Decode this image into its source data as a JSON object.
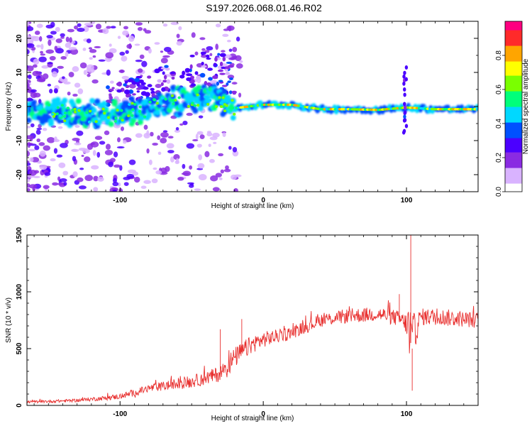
{
  "title": "S197.2026.068.01.46.R02",
  "chart_data": [
    {
      "type": "heatmap",
      "title": "S197.2026.068.01.46.R02",
      "xlabel": "Height of straight line (km)",
      "ylabel": "Frequency (Hz)",
      "xlim": [
        -165,
        150
      ],
      "ylim": [
        -25,
        25
      ],
      "xticks": [
        -100,
        0,
        100
      ],
      "xtick_labels": [
        "-100",
        "0",
        "100"
      ],
      "yticks": [
        -20,
        -10,
        0,
        10,
        20
      ],
      "ytick_labels": [
        "-20",
        "-10",
        "0",
        "10",
        "20"
      ],
      "ridge": {
        "x": [
          -165,
          -140,
          -120,
          -100,
          -80,
          -60,
          -40,
          -30,
          -20,
          0,
          20,
          40,
          60,
          80,
          100,
          120,
          150
        ],
        "frequency": [
          -1.5,
          -2,
          -2.5,
          -2,
          -0.5,
          1.5,
          3,
          2,
          -0.5,
          0.5,
          0.5,
          -0.8,
          -0.8,
          -1,
          -0.3,
          -0.8,
          -0.8
        ]
      },
      "colorbar": {
        "label": "Normalized spectral amplitude",
        "range": [
          0,
          1
        ],
        "ticks": [
          0.0,
          0.2,
          0.4,
          0.6,
          0.8
        ],
        "tick_labels": [
          "0.0",
          "0.2",
          "0.4",
          "0.6",
          "0.8"
        ],
        "colors": [
          "#ffffff",
          "#d9b3ff",
          "#8a2be2",
          "#4b00ff",
          "#0050ff",
          "#00d8ff",
          "#00ff7a",
          "#7aff00",
          "#ffff00",
          "#ffa500",
          "#ff2a2a",
          "#ff0080"
        ]
      }
    },
    {
      "type": "line",
      "xlabel": "Height of straight line (km)",
      "ylabel": "SNR (10 * v/v)",
      "xlim": [
        -165,
        150
      ],
      "ylim": [
        0,
        1500
      ],
      "xticks": [
        -100,
        0,
        100
      ],
      "xtick_labels": [
        "-100",
        "0",
        "100"
      ],
      "yticks": [
        0,
        500,
        1000,
        1500
      ],
      "ytick_labels": [
        "0",
        "500",
        "1000",
        "1500"
      ],
      "series": [
        {
          "name": "SNR",
          "color": "#e8302f",
          "x": [
            -165,
            -150,
            -130,
            -110,
            -100,
            -90,
            -80,
            -70,
            -60,
            -50,
            -40,
            -30,
            -25,
            -20,
            -15,
            -10,
            -5,
            0,
            10,
            20,
            25,
            30,
            35,
            40,
            50,
            60,
            70,
            80,
            90,
            95,
            100,
            102,
            104,
            106,
            110,
            120,
            130,
            140,
            150
          ],
          "values": [
            30,
            35,
            45,
            65,
            80,
            110,
            150,
            170,
            190,
            210,
            240,
            280,
            350,
            420,
            470,
            520,
            555,
            580,
            610,
            640,
            670,
            690,
            720,
            750,
            770,
            790,
            795,
            805,
            780,
            760,
            720,
            600,
            500,
            650,
            780,
            780,
            770,
            760,
            750
          ],
          "noise": [
            10,
            12,
            15,
            20,
            25,
            30,
            35,
            40,
            50,
            55,
            60,
            70,
            100,
            90,
            85,
            80,
            75,
            70,
            60,
            60,
            55,
            55,
            55,
            60,
            60,
            65,
            65,
            65,
            70,
            70,
            90,
            400,
            350,
            150,
            75,
            75,
            75,
            70,
            70
          ],
          "spikes": [
            [
              -30,
              670
            ],
            [
              -15,
              760
            ],
            [
              103,
              1500
            ],
            [
              104,
              130
            ],
            [
              95,
              980
            ]
          ]
        }
      ]
    }
  ]
}
